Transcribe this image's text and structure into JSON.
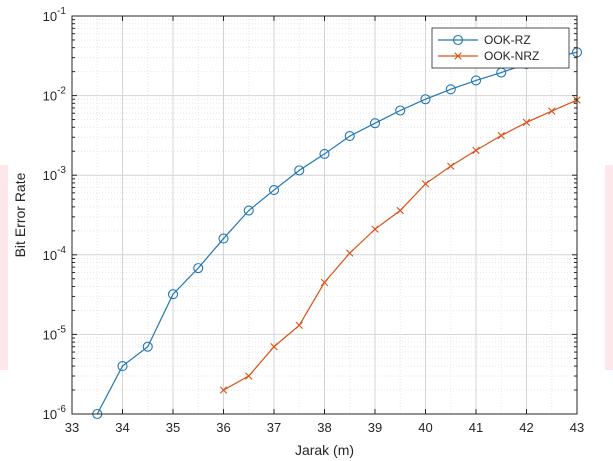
{
  "chart_data": {
    "type": "line",
    "title": "",
    "xlabel": "Jarak (m)",
    "ylabel": "Bit Error Rate",
    "xlim": [
      33,
      43
    ],
    "ylim": [
      1e-06,
      0.1
    ],
    "yscale": "log",
    "grid": true,
    "minor_grid": true,
    "legend_position": "top-right",
    "x_ticks": [
      "33",
      "34",
      "35",
      "36",
      "37",
      "38",
      "39",
      "40",
      "41",
      "42",
      "43"
    ],
    "y_ticks": [
      {
        "base": "10",
        "exp": "-6"
      },
      {
        "base": "10",
        "exp": "-5"
      },
      {
        "base": "10",
        "exp": "-4"
      },
      {
        "base": "10",
        "exp": "-3"
      },
      {
        "base": "10",
        "exp": "-2"
      },
      {
        "base": "10",
        "exp": "-1"
      }
    ],
    "series": [
      {
        "name": "OOK-RZ",
        "color": "#1f77b4",
        "marker": "circle",
        "x": [
          33.5,
          34,
          34.5,
          35,
          35.5,
          36,
          36.5,
          37,
          37.5,
          38,
          38.5,
          39,
          39.5,
          40,
          40.5,
          41,
          41.5,
          42,
          42.5,
          43
        ],
        "y": [
          1e-06,
          4e-06,
          7e-06,
          3.2e-05,
          6.8e-05,
          0.00016,
          0.00036,
          0.00065,
          0.00115,
          0.00185,
          0.0031,
          0.0045,
          0.0065,
          0.009,
          0.012,
          0.0155,
          0.0195,
          0.025,
          0.03,
          0.035
        ]
      },
      {
        "name": "OOK-NRZ",
        "color": "#d95319",
        "marker": "x",
        "x": [
          36,
          36.5,
          37,
          37.5,
          38,
          38.5,
          39,
          39.5,
          40,
          40.5,
          41,
          41.5,
          42,
          42.5,
          43
        ],
        "y": [
          2e-06,
          3e-06,
          7e-06,
          1.3e-05,
          4.5e-05,
          0.000105,
          0.00021,
          0.00036,
          0.00078,
          0.0013,
          0.00205,
          0.00315,
          0.0046,
          0.0064,
          0.0088
        ]
      }
    ]
  }
}
